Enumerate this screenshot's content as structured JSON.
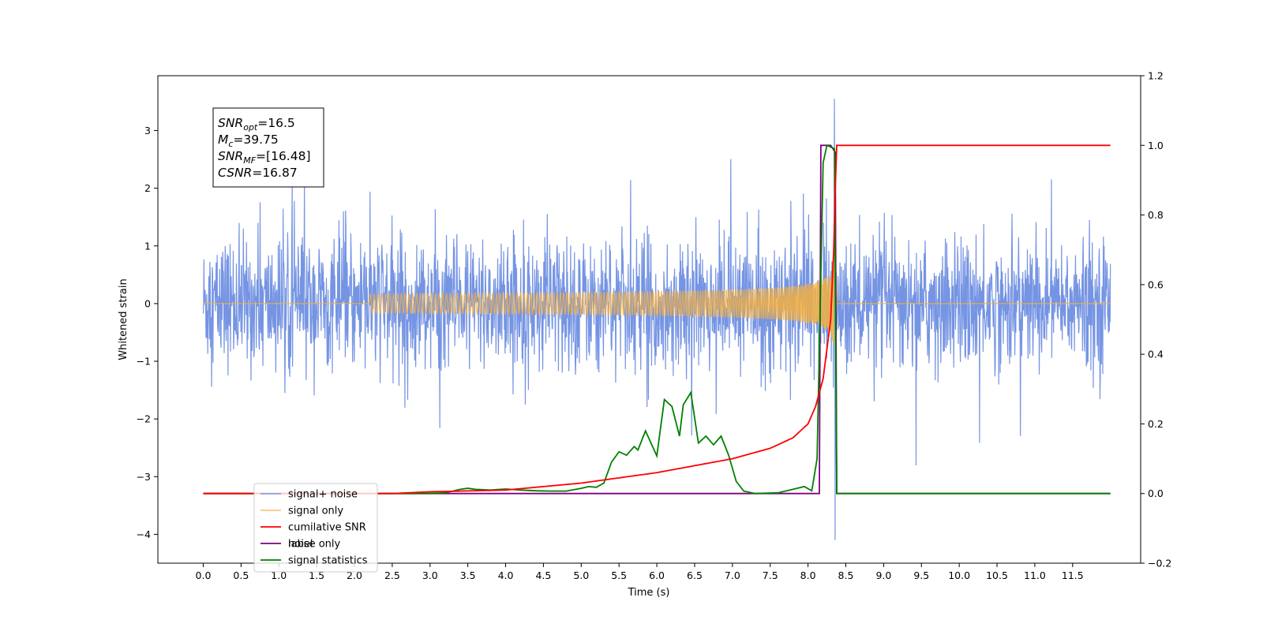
{
  "chart_data": {
    "type": "line",
    "title": "",
    "xlabel": "Time (s)",
    "ylabel": "Whitened strain",
    "ylabel_right": "",
    "xlim": [
      -0.6,
      12.4
    ],
    "ylim": [
      -4.5,
      3.95
    ],
    "ylim_right": [
      -0.2,
      1.2
    ],
    "grid": false,
    "legend_position": "lower-left",
    "x_ticks": [
      "0.0",
      "0.5",
      "1.0",
      "1.5",
      "2.0",
      "2.5",
      "3.0",
      "3.5",
      "4.0",
      "4.5",
      "5.0",
      "5.5",
      "6.0",
      "6.5",
      "7.0",
      "7.5",
      "8.0",
      "8.5",
      "9.0",
      "9.5",
      "10.0",
      "10.5",
      "11.0",
      "11.5"
    ],
    "y_ticks_left": [
      "3",
      "2",
      "1",
      "0",
      "−1",
      "−2",
      "−3",
      "−4"
    ],
    "y_ticks_right": [
      "1.2",
      "1.0",
      "0.8",
      "0.6",
      "0.4",
      "0.2",
      "0.0",
      "−0.2"
    ],
    "annotation_box": {
      "lines": [
        {
          "base": "SNR",
          "sub": "opt",
          "value": "=16.5"
        },
        {
          "base": "M",
          "sub": "c",
          "value": "=39.75"
        },
        {
          "base": "SNR",
          "sub": "MF",
          "value": "=[16.48]"
        },
        {
          "base": "CSNR",
          "sub": "",
          "value": "=16.87"
        }
      ]
    },
    "series": [
      {
        "name": "signal+ noise",
        "axis": "left",
        "color": "#6688e0",
        "description_range": [
          0.0,
          12.0
        ],
        "noise_envelope": [
          -1.6,
          1.6
        ],
        "min_value": -4.1,
        "max_value": 3.55,
        "peak_time": 8.35
      },
      {
        "name": "signal only",
        "axis": "left",
        "color": "#f5b041",
        "chirp_start": 2.2,
        "merger_time": 8.35,
        "peak_amplitude": 1.05
      },
      {
        "name": "cumilative SNR",
        "axis": "right",
        "color": "#ff0000",
        "points": [
          [
            0.0,
            0.0
          ],
          [
            2.5,
            0.0
          ],
          [
            3.0,
            0.005
          ],
          [
            4.0,
            0.01
          ],
          [
            5.0,
            0.03
          ],
          [
            6.0,
            0.06
          ],
          [
            6.5,
            0.08
          ],
          [
            7.0,
            0.1
          ],
          [
            7.5,
            0.13
          ],
          [
            7.8,
            0.16
          ],
          [
            8.0,
            0.2
          ],
          [
            8.1,
            0.25
          ],
          [
            8.2,
            0.33
          ],
          [
            8.3,
            0.5
          ],
          [
            8.35,
            0.75
          ],
          [
            8.37,
            1.0
          ],
          [
            12.0,
            1.0
          ]
        ]
      },
      {
        "name": "label",
        "axis": "right",
        "color": "#800080",
        "points": [
          [
            0.0,
            0.0
          ],
          [
            8.15,
            0.0
          ],
          [
            8.17,
            1.0
          ],
          [
            8.3,
            1.0
          ],
          [
            8.36,
            0.98
          ],
          [
            8.38,
            0.0
          ],
          [
            12.0,
            0.0
          ]
        ]
      },
      {
        "name": "noise only",
        "axis": "right",
        "color": "#d0d0d0",
        "points": []
      },
      {
        "name": "signal statistics",
        "axis": "right",
        "color": "#008000",
        "points": [
          [
            0.0,
            0.0
          ],
          [
            3.0,
            0.0
          ],
          [
            3.2,
            0.002
          ],
          [
            3.4,
            0.012
          ],
          [
            3.5,
            0.015
          ],
          [
            3.6,
            0.012
          ],
          [
            3.8,
            0.01
          ],
          [
            4.0,
            0.013
          ],
          [
            4.2,
            0.01
          ],
          [
            4.4,
            0.008
          ],
          [
            4.6,
            0.007
          ],
          [
            4.8,
            0.007
          ],
          [
            5.0,
            0.015
          ],
          [
            5.1,
            0.02
          ],
          [
            5.2,
            0.018
          ],
          [
            5.3,
            0.03
          ],
          [
            5.4,
            0.09
          ],
          [
            5.5,
            0.12
          ],
          [
            5.6,
            0.11
          ],
          [
            5.7,
            0.135
          ],
          [
            5.75,
            0.125
          ],
          [
            5.85,
            0.18
          ],
          [
            6.0,
            0.108
          ],
          [
            6.1,
            0.27
          ],
          [
            6.2,
            0.25
          ],
          [
            6.3,
            0.165
          ],
          [
            6.35,
            0.255
          ],
          [
            6.45,
            0.29
          ],
          [
            6.55,
            0.145
          ],
          [
            6.65,
            0.165
          ],
          [
            6.75,
            0.14
          ],
          [
            6.85,
            0.165
          ],
          [
            6.95,
            0.11
          ],
          [
            7.05,
            0.035
          ],
          [
            7.15,
            0.007
          ],
          [
            7.3,
            0.0
          ],
          [
            7.6,
            0.002
          ],
          [
            7.8,
            0.012
          ],
          [
            7.95,
            0.02
          ],
          [
            8.05,
            0.008
          ],
          [
            8.12,
            0.1
          ],
          [
            8.2,
            0.95
          ],
          [
            8.25,
            1.0
          ],
          [
            8.3,
            0.995
          ],
          [
            8.35,
            0.99
          ],
          [
            8.38,
            0.0
          ],
          [
            12.0,
            0.0
          ]
        ]
      }
    ]
  }
}
